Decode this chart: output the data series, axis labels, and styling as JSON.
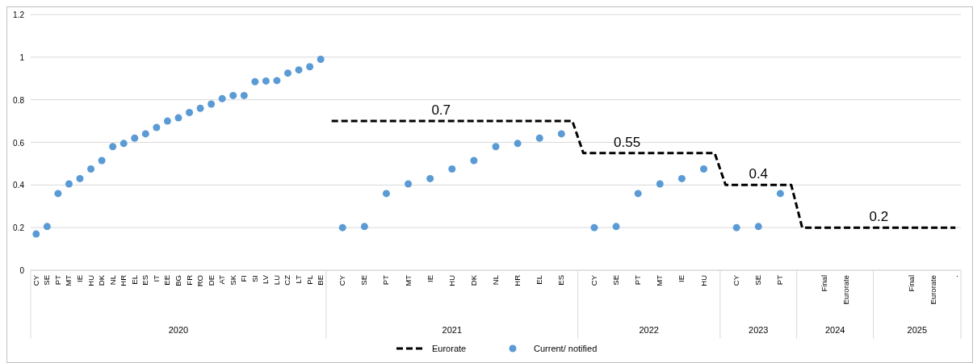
{
  "chart_data": {
    "type": "line",
    "categories": [
      "CY",
      "SE",
      "PT",
      "MT",
      "IE",
      "HU",
      "DK",
      "NL",
      "HR",
      "EL",
      "ES",
      "IT",
      "EE",
      "BG",
      "FR",
      "RO",
      "DE",
      "AT",
      "SK",
      "FI",
      "SI",
      "LV",
      "LU",
      "CZ",
      "LT",
      "PL",
      "BE",
      null,
      "CY",
      null,
      "SE",
      null,
      "PT",
      null,
      "MT",
      null,
      "IE",
      null,
      "HU",
      null,
      "DK",
      null,
      "NL",
      null,
      "HR",
      null,
      "EL",
      null,
      "ES",
      null,
      null,
      "CY",
      null,
      "SE",
      null,
      "PT",
      null,
      "MT",
      null,
      "IE",
      null,
      "HU",
      null,
      null,
      "CY",
      null,
      "SE",
      null,
      "PT",
      null,
      null,
      null,
      "Final",
      null,
      "Eurorate",
      null,
      null,
      null,
      null,
      null,
      "Final",
      null,
      "Eurorate",
      null,
      "."
    ],
    "series": [
      {
        "name": "Eurorate",
        "color": "#000000",
        "line_style": "dashed",
        "marker": "none",
        "values": [
          null,
          null,
          null,
          null,
          null,
          null,
          null,
          null,
          null,
          null,
          null,
          null,
          null,
          null,
          null,
          null,
          null,
          null,
          null,
          null,
          null,
          null,
          null,
          null,
          null,
          null,
          null,
          0.7,
          0.7,
          0.7,
          0.7,
          0.7,
          0.7,
          0.7,
          0.7,
          0.7,
          0.7,
          0.7,
          0.7,
          0.7,
          0.7,
          0.7,
          0.7,
          0.7,
          0.7,
          0.7,
          0.7,
          0.7,
          0.7,
          0.7,
          0.55,
          0.55,
          0.55,
          0.55,
          0.55,
          0.55,
          0.55,
          0.55,
          0.55,
          0.55,
          0.55,
          0.55,
          0.55,
          0.4,
          0.4,
          0.4,
          0.4,
          0.4,
          0.4,
          0.4,
          0.2,
          0.2,
          0.2,
          0.2,
          0.2,
          0.2,
          0.2,
          0.2,
          0.2,
          0.2,
          0.2,
          0.2,
          0.2,
          0.2,
          0.2
        ],
        "value_labels": [
          null,
          null,
          null,
          null,
          null,
          null,
          null,
          null,
          null,
          null,
          null,
          null,
          null,
          null,
          null,
          null,
          null,
          null,
          null,
          null,
          null,
          null,
          null,
          null,
          null,
          null,
          null,
          null,
          null,
          null,
          null,
          null,
          null,
          null,
          null,
          null,
          null,
          "0.7",
          null,
          null,
          null,
          null,
          null,
          null,
          null,
          null,
          null,
          null,
          null,
          null,
          null,
          null,
          null,
          null,
          "0.55",
          null,
          null,
          null,
          null,
          null,
          null,
          null,
          null,
          null,
          null,
          null,
          "0.4",
          null,
          null,
          null,
          null,
          null,
          null,
          null,
          null,
          null,
          null,
          "0.2",
          null,
          null,
          null,
          null,
          null,
          null,
          null
        ]
      },
      {
        "name": "Current/ notified",
        "type": "scatter",
        "color": "#5b9bd5",
        "marker": "circle",
        "values": [
          0.17,
          0.205,
          0.36,
          0.405,
          0.43,
          0.475,
          0.515,
          0.58,
          0.595,
          0.62,
          0.64,
          0.67,
          0.7,
          0.715,
          0.74,
          0.76,
          0.78,
          0.805,
          0.82,
          0.82,
          0.885,
          0.888,
          0.89,
          0.925,
          0.94,
          0.955,
          0.99,
          null,
          0.2,
          null,
          0.205,
          null,
          0.36,
          null,
          0.405,
          null,
          0.43,
          null,
          0.475,
          null,
          0.515,
          null,
          0.58,
          null,
          0.595,
          null,
          0.62,
          null,
          0.64,
          null,
          null,
          0.2,
          null,
          0.205,
          null,
          0.36,
          null,
          0.405,
          null,
          0.43,
          null,
          0.475,
          null,
          null,
          0.2,
          null,
          0.205,
          null,
          0.36,
          null,
          null,
          null,
          null,
          null,
          null,
          null,
          null,
          null,
          null,
          null,
          null,
          null,
          null,
          null,
          null
        ]
      }
    ],
    "ylim": [
      0,
      1.2
    ],
    "yticks": [
      0,
      0.2,
      0.4,
      0.6,
      0.8,
      1,
      1.2
    ],
    "grid": "y",
    "legend": "bottom",
    "annotations": [
      "2020",
      "2021",
      "2022",
      "2023",
      "2024",
      "2025"
    ]
  }
}
